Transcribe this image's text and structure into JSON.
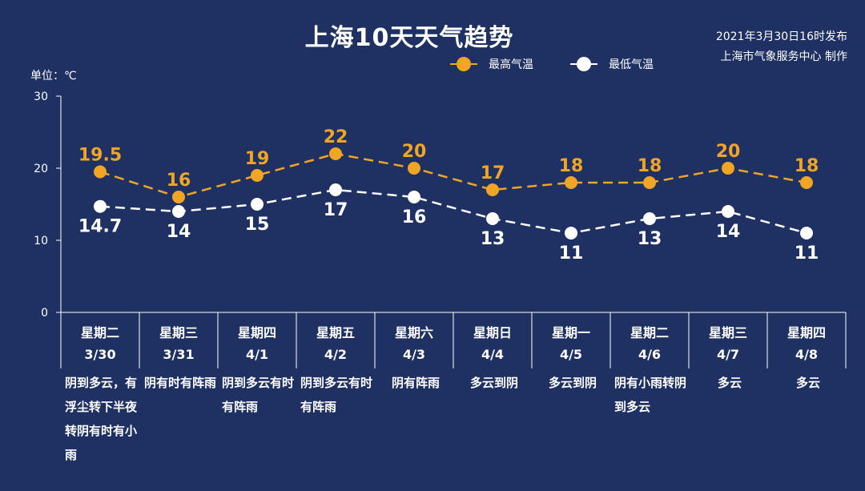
{
  "title": "上海10天天气趋势",
  "issue_line1": "2021年3月30日16时发布",
  "issue_line2": "上海市气象服务中心 制作",
  "unit_label": "单位：℃",
  "colors": {
    "high": "#f0a525",
    "low": "#ffffff",
    "background": "#1f3163",
    "axis": "#ffffff"
  },
  "chart_data": {
    "type": "line",
    "categories": [
      "星期二 3/30",
      "星期三 3/31",
      "星期四 4/1",
      "星期五 4/2",
      "星期六 4/3",
      "星期日 4/4",
      "星期一 4/5",
      "星期二 4/6",
      "星期三 4/7",
      "星期四 4/8"
    ],
    "series": [
      {
        "name": "最高气温",
        "values": [
          19.5,
          16,
          19,
          22,
          20,
          17,
          18,
          18,
          20,
          18
        ],
        "labels": [
          "19.5",
          "16",
          "19",
          "22",
          "20",
          "17",
          "18",
          "18",
          "20",
          "18"
        ],
        "color": "#f0a525",
        "dash": true
      },
      {
        "name": "最低气温",
        "values": [
          14.7,
          14,
          15,
          17,
          16,
          13,
          11,
          13,
          14,
          11
        ],
        "labels": [
          "14.7",
          "14",
          "15",
          "17",
          "16",
          "13",
          "11",
          "13",
          "14",
          "11"
        ],
        "color": "#ffffff",
        "dash": true
      }
    ],
    "ylim": [
      0,
      30
    ],
    "yticks": [
      "0",
      "10",
      "20",
      "30"
    ],
    "legend_position": "top-right",
    "grid": false
  },
  "days": [
    {
      "weekday": "星期二",
      "date": "3/30",
      "weather": "阴到多云，有浮尘转下半夜转阴有时有小雨"
    },
    {
      "weekday": "星期三",
      "date": "3/31",
      "weather": "阴有时有阵雨"
    },
    {
      "weekday": "星期四",
      "date": "4/1",
      "weather": "阴到多云有时有阵雨"
    },
    {
      "weekday": "星期五",
      "date": "4/2",
      "weather": "阴到多云有时有阵雨"
    },
    {
      "weekday": "星期六",
      "date": "4/3",
      "weather": "阴有阵雨"
    },
    {
      "weekday": "星期日",
      "date": "4/4",
      "weather": "多云到阴"
    },
    {
      "weekday": "星期一",
      "date": "4/5",
      "weather": "多云到阴"
    },
    {
      "weekday": "星期二",
      "date": "4/6",
      "weather": "阴有小雨转阴到多云"
    },
    {
      "weekday": "星期三",
      "date": "4/7",
      "weather": "多云"
    },
    {
      "weekday": "星期四",
      "date": "4/8",
      "weather": "多云"
    }
  ]
}
